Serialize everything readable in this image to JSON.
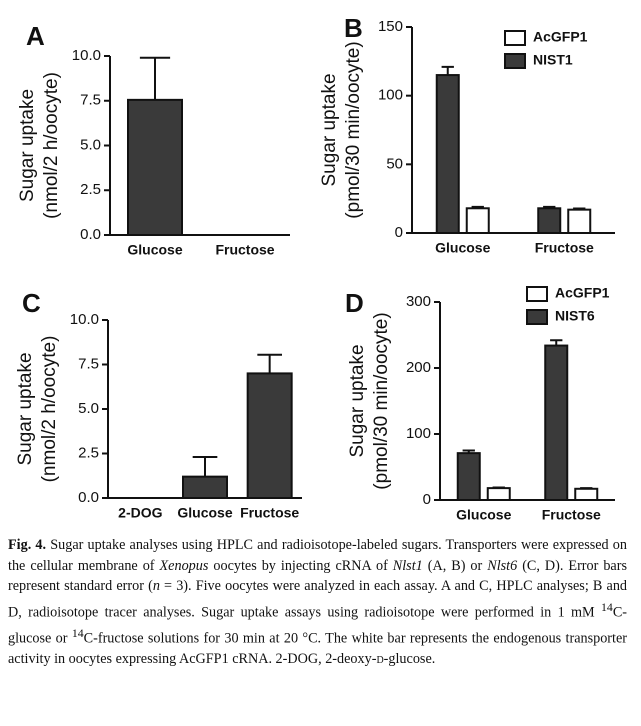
{
  "chart_data": [
    {
      "type": "bar",
      "panel": "A",
      "ylabel": [
        "Sugar uptake",
        "(nmol/2 h/oocyte)"
      ],
      "categories": [
        "Glucose",
        "Fructose"
      ],
      "values": [
        7.55,
        0
      ],
      "errors": [
        2.35,
        0
      ],
      "color": "#3a3a3a",
      "ylim": [
        0,
        10
      ],
      "yticks": [
        {
          "value": 0,
          "label": "0.0"
        },
        {
          "value": 2.5,
          "label": "2.5"
        },
        {
          "value": 5,
          "label": "5.0"
        },
        {
          "value": 7.5,
          "label": "7.5"
        },
        {
          "value": 10,
          "label": "10.0"
        }
      ]
    },
    {
      "type": "grouped_bar",
      "panel": "B",
      "ylabel": [
        "Sugar uptake",
        "(pmol/30 min/oocyte)"
      ],
      "categories": [
        "Glucose",
        "Fructose"
      ],
      "legend": "upper right",
      "series": [
        {
          "name": "AcGFP1",
          "color": "#ffffff",
          "values": [
            18,
            17
          ],
          "errors": [
            1,
            0.8
          ]
        },
        {
          "name": "NIST1",
          "color": "#3a3a3a",
          "values": [
            115,
            18
          ],
          "errors": [
            6,
            1
          ]
        }
      ],
      "ylim": [
        0,
        150
      ],
      "yticks": [
        0,
        50,
        100,
        150
      ]
    },
    {
      "type": "bar",
      "panel": "C",
      "ylabel": [
        "Sugar uptake",
        "(nmol/2 h/oocyte)"
      ],
      "categories": [
        "2-DOG",
        "Glucose",
        "Fructose"
      ],
      "values": [
        0,
        1.2,
        7.0
      ],
      "errors": [
        0,
        1.1,
        1.05
      ],
      "color": "#3a3a3a",
      "ylim": [
        0,
        10
      ],
      "yticks": [
        {
          "value": 0,
          "label": "0.0"
        },
        {
          "value": 2.5,
          "label": "2.5"
        },
        {
          "value": 5,
          "label": "5.0"
        },
        {
          "value": 7.5,
          "label": "7.5"
        },
        {
          "value": 10,
          "label": "10.0"
        }
      ]
    },
    {
      "type": "grouped_bar",
      "panel": "D",
      "ylabel": [
        "Sugar uptake",
        "(pmol/30 min/oocyte)"
      ],
      "categories": [
        "Glucose",
        "Fructose"
      ],
      "legend": "upper right",
      "series": [
        {
          "name": "AcGFP1",
          "color": "#ffffff",
          "values": [
            18,
            17
          ],
          "errors": [
            1,
            1
          ]
        },
        {
          "name": "NIST6",
          "color": "#3a3a3a",
          "values": [
            71,
            234
          ],
          "errors": [
            4,
            8
          ]
        }
      ],
      "ylim": [
        0,
        300
      ],
      "yticks": [
        0,
        100,
        200,
        300
      ]
    }
  ],
  "caption": [
    {
      "text": "Fig. 4.",
      "style": "bold"
    },
    {
      "text": " Sugar uptake analyses using HPLC and radioisotope-labeled sugars. Transporters were expressed on the cellular membrane of "
    },
    {
      "text": "Xenopus",
      "style": "italic"
    },
    {
      "text": " oocytes by injecting cRNA of "
    },
    {
      "text": "Nlst1",
      "style": "italic"
    },
    {
      "text": " (A, B) or "
    },
    {
      "text": "Nlst6",
      "style": "italic"
    },
    {
      "text": " (C, D). Error bars represent standard error ("
    },
    {
      "text": "n",
      "style": "italic"
    },
    {
      "text": " = 3). Five oocytes were analyzed in each assay. A and C, HPLC analyses; B and D, radioisotope tracer analyses. Sugar uptake assays using radioisotope were performed in 1 mM "
    },
    {
      "text": "14",
      "style": "sup"
    },
    {
      "text": "C-glucose or "
    },
    {
      "text": "14",
      "style": "sup"
    },
    {
      "text": "C-fructose solutions for 30 min at 20 °C. The white bar represents the endogenous transporter activity in oocytes expressing AcGFP1 cRNA. 2-DOG, 2-deoxy-"
    },
    {
      "text": "D",
      "style": "smallcaps"
    },
    {
      "text": "-glucose."
    }
  ]
}
